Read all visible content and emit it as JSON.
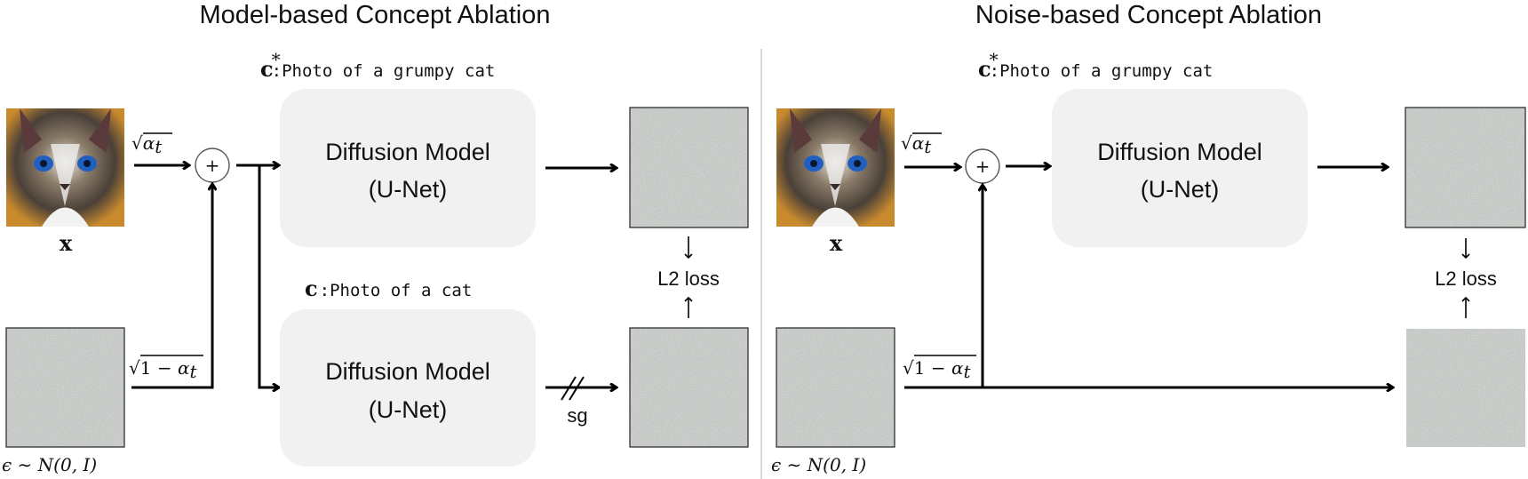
{
  "left": {
    "title": "Model-based Concept Ablation",
    "prompt_top": {
      "symbol": "c",
      "star": "*",
      "colon": ":",
      "text": "Photo of a ",
      "word1": "grumpy",
      "word2": "cat"
    },
    "prompt_bottom": {
      "symbol": "c",
      "colon": ":",
      "text": "Photo of a ",
      "word2": "cat"
    },
    "box_top": {
      "line1": "Diffusion Model",
      "line2": "(U-Net)"
    },
    "box_bottom": {
      "line1": "Diffusion Model",
      "line2": "(U-Net)"
    },
    "image_label": "x",
    "noise_label": {
      "eps": "ϵ",
      "rest": " ∼ N(0, I)"
    },
    "coef_top": {
      "root": "√",
      "sym": "α",
      "sub": "t"
    },
    "coef_bottom": {
      "root": "√",
      "one": "1 − ",
      "sym": "α",
      "sub": "t"
    },
    "plus": "+",
    "loss_label": "L2 loss",
    "sg_label": "sg"
  },
  "right": {
    "title": "Noise-based Concept Ablation",
    "prompt_top": {
      "symbol": "c",
      "star": "*",
      "colon": ":",
      "text": "Photo of a ",
      "word1": "grumpy",
      "word2": "cat"
    },
    "box_top": {
      "line1": "Diffusion Model",
      "line2": "(U-Net)"
    },
    "image_label": "x",
    "noise_label": {
      "eps": "ϵ",
      "rest": " ∼ N(0, I)"
    },
    "coef_top": {
      "root": "√",
      "sym": "α",
      "sub": "t"
    },
    "coef_bottom": {
      "root": "√",
      "one": "1 − ",
      "sym": "α",
      "sub": "t"
    },
    "plus": "+",
    "loss_label": "L2 loss"
  },
  "colors": {
    "target_word": "#b00000",
    "anchor_word": "#4a78c0",
    "box_fill": "#f1f1f1",
    "divider": "#d8d8d8"
  },
  "icons": {
    "image": "cat-photo",
    "noise": "gaussian-noise-image"
  }
}
